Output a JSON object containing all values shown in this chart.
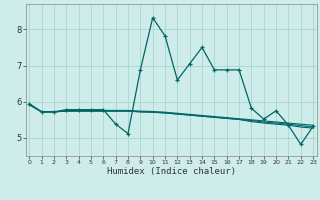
{
  "xlabel": "Humidex (Indice chaleur)",
  "bg_color": "#ceecea",
  "grid_color": "#aad4d0",
  "line_color": "#006666",
  "x_ticks": [
    0,
    1,
    2,
    3,
    4,
    5,
    6,
    7,
    8,
    9,
    10,
    11,
    12,
    13,
    14,
    15,
    16,
    17,
    18,
    19,
    20,
    21,
    22,
    23
  ],
  "y_ticks": [
    5,
    6,
    7,
    8
  ],
  "ylim": [
    4.5,
    8.7
  ],
  "xlim": [
    -0.3,
    23.3
  ],
  "series_jagged": [
    5.95,
    5.72,
    5.72,
    5.78,
    5.78,
    5.78,
    5.78,
    5.38,
    5.12,
    6.88,
    8.32,
    7.82,
    6.6,
    7.05,
    7.5,
    6.88,
    6.88,
    6.88,
    5.82,
    5.52,
    5.75,
    5.35,
    4.82,
    5.32
  ],
  "series_flat1": [
    5.92,
    5.72,
    5.72,
    5.75,
    5.76,
    5.76,
    5.76,
    5.76,
    5.76,
    5.74,
    5.73,
    5.71,
    5.68,
    5.65,
    5.62,
    5.59,
    5.56,
    5.53,
    5.5,
    5.47,
    5.44,
    5.41,
    5.38,
    5.35
  ],
  "series_flat2": [
    5.92,
    5.72,
    5.72,
    5.74,
    5.74,
    5.74,
    5.74,
    5.74,
    5.74,
    5.72,
    5.71,
    5.69,
    5.66,
    5.63,
    5.6,
    5.57,
    5.54,
    5.51,
    5.48,
    5.44,
    5.41,
    5.38,
    5.34,
    5.3
  ],
  "series_flat3": [
    5.92,
    5.72,
    5.72,
    5.74,
    5.74,
    5.74,
    5.74,
    5.74,
    5.74,
    5.72,
    5.71,
    5.69,
    5.66,
    5.63,
    5.6,
    5.57,
    5.54,
    5.51,
    5.45,
    5.41,
    5.38,
    5.35,
    5.3,
    5.27
  ]
}
